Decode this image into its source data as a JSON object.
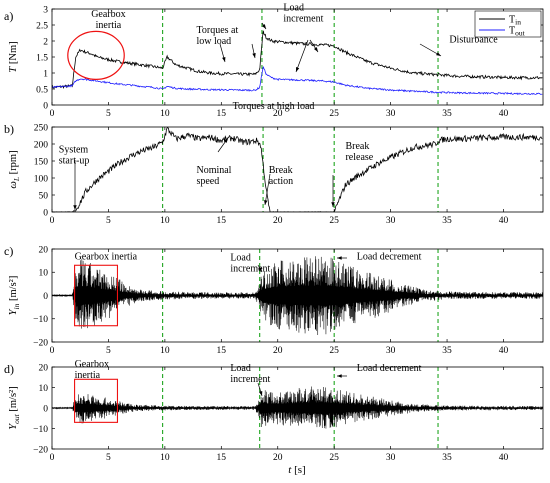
{
  "colors": {
    "tin": "#000000",
    "tout": "#1f1fff",
    "vline": "#1fa51f",
    "highlight": "#ee1111",
    "axis": "#000000"
  },
  "xlabel": "t [s]",
  "chart_data": [
    {
      "id": "a",
      "type": "line",
      "panel_label": "a)",
      "ylabel": "T [Nm]",
      "xlim": [
        0,
        43.5
      ],
      "ylim": [
        0,
        3
      ],
      "xticks": [
        0,
        5,
        10,
        15,
        20,
        25,
        30,
        35,
        40
      ],
      "yticks": [
        0,
        0.5,
        1,
        1.5,
        2,
        2.5,
        3
      ],
      "ytick_labels": [
        "0",
        "0.5",
        "1",
        "1.5",
        "2",
        "2.5",
        "3"
      ],
      "event_lines": [
        9.8,
        18.6,
        25,
        34.2
      ],
      "legend": {
        "position": "top-right",
        "entries": [
          "T_in",
          "T_out"
        ]
      },
      "series": [
        {
          "name": "T_in",
          "color_key": "tin",
          "x": [
            0,
            1.8,
            2.1,
            2.5,
            3,
            3.5,
            4,
            5,
            6,
            7,
            8,
            9,
            9.8,
            10.2,
            11,
            12,
            13,
            14,
            15,
            16,
            17,
            18,
            18.4,
            18.7,
            19,
            19.5,
            20,
            22,
            24,
            25,
            26,
            28,
            30,
            32,
            34,
            36,
            38,
            40,
            43.5
          ],
          "y": [
            0.55,
            0.6,
            1.5,
            1.72,
            1.65,
            1.6,
            1.5,
            1.42,
            1.35,
            1.3,
            1.25,
            1.2,
            1.15,
            1.5,
            1.25,
            1.15,
            1.05,
            1.0,
            0.98,
            0.97,
            0.96,
            0.96,
            1.1,
            2.3,
            2.1,
            2.0,
            1.98,
            1.92,
            1.88,
            1.85,
            1.65,
            1.35,
            1.15,
            1.0,
            0.95,
            0.9,
            0.88,
            0.86,
            0.85
          ],
          "noise": 0.045
        },
        {
          "name": "T_out",
          "color_key": "tout",
          "x": [
            0,
            1.8,
            2.1,
            2.5,
            3,
            4,
            5,
            6,
            7,
            8,
            9,
            9.8,
            10.2,
            11,
            12,
            14,
            16,
            18,
            18.4,
            18.7,
            19,
            19.5,
            20,
            22,
            24,
            25,
            26,
            28,
            30,
            32,
            34,
            36,
            38,
            40,
            43.5
          ],
          "y": [
            0.55,
            0.6,
            0.75,
            0.82,
            0.8,
            0.75,
            0.7,
            0.65,
            0.62,
            0.58,
            0.55,
            0.5,
            0.58,
            0.52,
            0.5,
            0.48,
            0.47,
            0.46,
            0.55,
            1.2,
            0.95,
            0.85,
            0.8,
            0.78,
            0.75,
            0.72,
            0.62,
            0.52,
            0.47,
            0.43,
            0.4,
            0.38,
            0.37,
            0.36,
            0.35
          ],
          "noise": 0.025
        }
      ],
      "annotations": [
        {
          "text": [
            "Gearbox",
            "inertia"
          ],
          "x": 5.0,
          "y": 2.75,
          "anchor": "middle"
        },
        {
          "text": [
            "Torques at",
            "low load"
          ],
          "x": 12.8,
          "y": 2.25,
          "anchor": "start"
        },
        {
          "text": [
            "Load",
            "increment"
          ],
          "x": 20.5,
          "y": 2.95,
          "anchor": "start"
        },
        {
          "text": [
            "Disturbance"
          ],
          "x": 35.2,
          "y": 1.95,
          "anchor": "start"
        },
        {
          "text": [
            "Torques at high load"
          ],
          "x": 16.0,
          "y": -0.12,
          "anchor": "start"
        }
      ],
      "highlight_ellipse": {
        "cx": 3.9,
        "cy": 1.55,
        "rx": 2.5,
        "ry": 0.75
      }
    },
    {
      "id": "b",
      "type": "line",
      "panel_label": "b)",
      "ylabel": "ω_L [rpm]",
      "xlim": [
        0,
        43.5
      ],
      "ylim": [
        0,
        250
      ],
      "xticks": [
        0,
        5,
        10,
        15,
        20,
        25,
        30,
        35,
        40
      ],
      "yticks": [
        0,
        50,
        100,
        150,
        200,
        250
      ],
      "ytick_labels": [
        "0",
        "50",
        "100",
        "150",
        "200",
        "250"
      ],
      "event_lines": [
        9.8,
        18.7,
        25,
        34.2
      ],
      "series": [
        {
          "name": "",
          "color_key": "tin",
          "x": [
            0,
            1.8,
            2.2,
            3,
            4,
            5,
            6,
            7,
            8,
            9,
            9.8,
            10.2,
            11,
            12,
            13,
            14,
            15,
            16,
            17,
            18.2,
            18.5,
            19,
            19.3,
            25,
            25.5,
            26,
            27,
            28,
            29,
            30,
            31,
            32,
            33,
            34,
            34.2,
            35,
            36,
            38,
            40,
            42,
            43.5
          ],
          "y": [
            0,
            0,
            10,
            60,
            95,
            120,
            145,
            165,
            180,
            190,
            205,
            245,
            215,
            225,
            215,
            220,
            210,
            218,
            205,
            210,
            195,
            60,
            0,
            0,
            40,
            80,
            105,
            125,
            145,
            160,
            175,
            190,
            195,
            200,
            210,
            215,
            215,
            218,
            220,
            220,
            220
          ],
          "noise": 9
        }
      ],
      "annotations": [
        {
          "text": [
            "System",
            "start-up"
          ],
          "x": 0.6,
          "y": 175,
          "anchor": "start"
        },
        {
          "text": [
            "Nominal",
            "speed"
          ],
          "x": 12.8,
          "y": 115,
          "anchor": "start"
        },
        {
          "text": [
            "Break",
            "action"
          ],
          "x": 19.2,
          "y": 115,
          "anchor": "start"
        },
        {
          "text": [
            "Break",
            "release"
          ],
          "x": 26.0,
          "y": 185,
          "anchor": "start"
        }
      ]
    },
    {
      "id": "c",
      "type": "line",
      "panel_label": "c)",
      "ylabel": "Y_in [m/s²]",
      "xlim": [
        0,
        43.5
      ],
      "ylim": [
        -20,
        20
      ],
      "xticks": [
        0,
        5,
        10,
        15,
        20,
        25,
        30,
        35,
        40
      ],
      "yticks": [
        -20,
        -10,
        0,
        10,
        20
      ],
      "ytick_labels": [
        "−20",
        "−10",
        "0",
        "10",
        "20"
      ],
      "event_lines": [
        9.8,
        18.4,
        25,
        34.2
      ],
      "envelope": {
        "x": [
          0,
          1.8,
          2.1,
          2.6,
          3.5,
          4.5,
          5.5,
          6.5,
          8,
          10,
          12,
          15,
          18,
          18.3,
          18.7,
          19.5,
          21,
          23,
          24.5,
          25.5,
          27,
          29,
          31,
          33,
          35,
          38,
          43.5
        ],
        "amp": [
          0.3,
          0.3,
          13,
          16,
          14,
          11,
          9,
          5,
          2.5,
          1.8,
          1.5,
          1.4,
          1.4,
          5,
          11,
          14,
          16,
          17,
          17,
          15,
          12,
          9,
          5,
          2.5,
          1.8,
          1.5,
          1.4
        ]
      },
      "highlight_box": {
        "x0": 2.0,
        "x1": 5.8,
        "y0": -13,
        "y1": 13
      },
      "annotations": [
        {
          "text": [
            "Gearbox inertia"
          ],
          "x": 2.0,
          "y": 15.5,
          "anchor": "start"
        },
        {
          "text": [
            "Load",
            "increment"
          ],
          "x": 15.8,
          "y": 15.0,
          "anchor": "start"
        },
        {
          "text": [
            "Load decrement"
          ],
          "x": 27.0,
          "y": 15.5,
          "anchor": "start"
        }
      ]
    },
    {
      "id": "d",
      "type": "line",
      "panel_label": "d)",
      "ylabel": "Y_out [m/s²]",
      "xlim": [
        0,
        43.5
      ],
      "ylim": [
        -20,
        20
      ],
      "xticks": [
        0,
        5,
        10,
        15,
        20,
        25,
        30,
        35,
        40
      ],
      "xtick_labels": [
        "0",
        "5",
        "10",
        "15",
        "20",
        "25",
        "30",
        "35",
        "40"
      ],
      "yticks": [
        -20,
        -10,
        0,
        10,
        20
      ],
      "ytick_labels": [
        "−20",
        "−10",
        "0",
        "10",
        "20"
      ],
      "event_lines": [
        9.8,
        18.4,
        25,
        34.2
      ],
      "envelope": {
        "x": [
          0,
          1.8,
          2.1,
          2.6,
          3.5,
          4.5,
          5.5,
          6.5,
          8,
          10,
          12,
          15,
          18,
          18.3,
          18.5,
          19,
          20,
          22,
          24,
          25.5,
          27,
          29,
          31,
          33,
          35,
          38,
          43.5
        ],
        "amp": [
          0.3,
          0.3,
          7,
          8,
          7,
          5.5,
          4,
          2.5,
          1.6,
          1.2,
          1.0,
          1.0,
          1.0,
          4,
          11,
          9,
          8,
          10,
          11,
          9,
          7,
          5,
          3,
          1.8,
          1.3,
          1.1,
          1.0
        ]
      },
      "highlight_box": {
        "x0": 2.0,
        "x1": 5.8,
        "y0": -7,
        "y1": 14
      },
      "annotations": [
        {
          "text": [
            "Gearbox",
            "inertia"
          ],
          "x": 2.0,
          "y": 20.0,
          "anchor": "start"
        },
        {
          "text": [
            "Load",
            "increment"
          ],
          "x": 15.8,
          "y": 18.0,
          "anchor": "start"
        },
        {
          "text": [
            "Load decrement"
          ],
          "x": 27.0,
          "y": 18.0,
          "anchor": "start"
        }
      ]
    }
  ]
}
